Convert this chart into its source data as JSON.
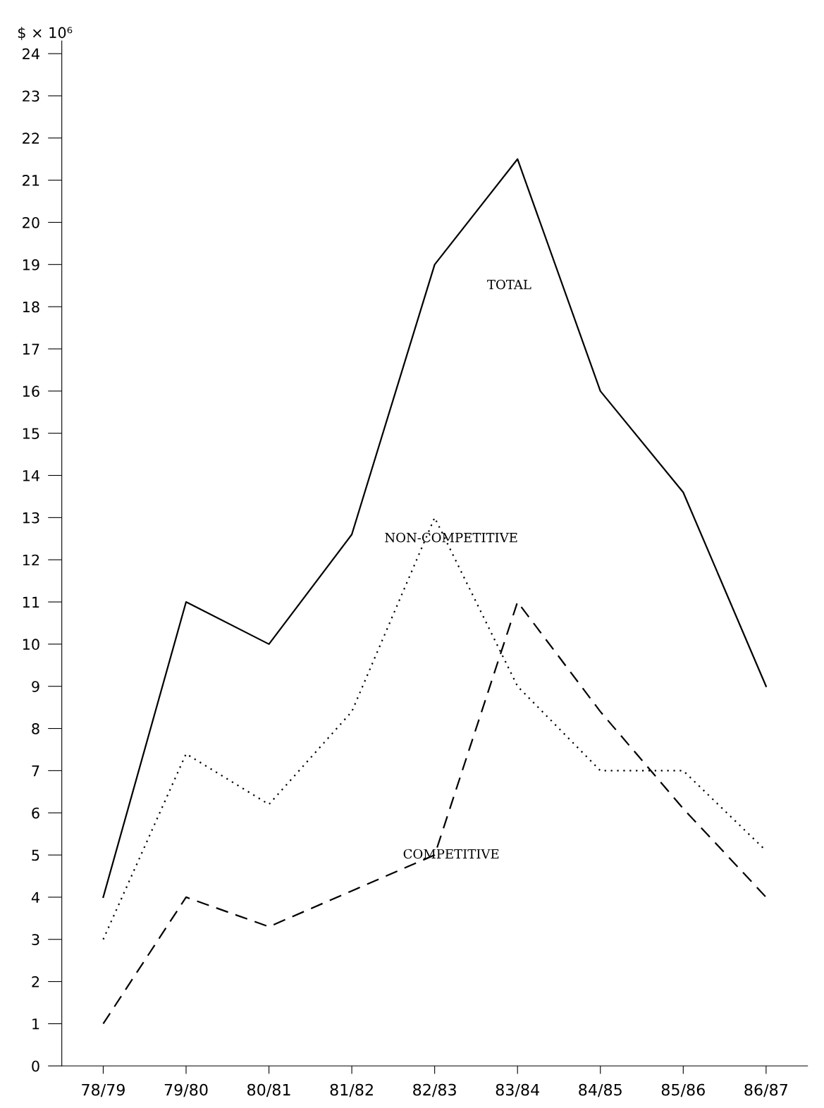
{
  "chart_data": {
    "type": "line",
    "ylabel": "$ × 10⁶",
    "categories": [
      "78/79",
      "79/80",
      "80/81",
      "81/82",
      "82/83",
      "83/84",
      "84/85",
      "85/86",
      "86/87"
    ],
    "series": [
      {
        "name": "TOTAL",
        "color": "#000000",
        "line_style": "solid",
        "values": [
          4,
          11,
          10,
          12.6,
          19,
          21.5,
          16,
          13.6,
          9
        ]
      },
      {
        "name": "NON-COMPETITIVE",
        "color": "#000000",
        "line_style": "dotted",
        "values": [
          3,
          7.4,
          6.2,
          8.4,
          13,
          9,
          7,
          7,
          5.1
        ]
      },
      {
        "name": "COMPETITIVE",
        "color": "#000000",
        "line_style": "dashed",
        "values": [
          1,
          4,
          3.3,
          4.15,
          5,
          11,
          8.4,
          6.1,
          4
        ]
      }
    ],
    "ylim": [
      0,
      24.3
    ],
    "yticks": [
      0,
      1,
      2,
      3,
      4,
      5,
      6,
      7,
      8,
      9,
      10,
      11,
      12,
      13,
      14,
      15,
      16,
      17,
      18,
      19,
      20,
      21,
      22,
      23,
      24
    ],
    "grid": false,
    "legend": false,
    "marker": "none"
  }
}
